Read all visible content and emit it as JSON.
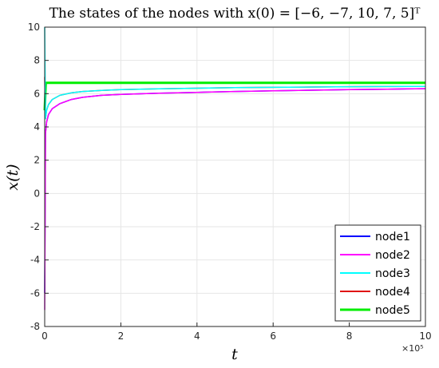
{
  "chart_data": {
    "type": "line",
    "title": "The states of the nodes with x(0) = [−6, −7, 10, 7, 5]ᵀ",
    "xlabel": "t",
    "ylabel": "x(t)",
    "x_exponent": "×10⁵",
    "xlim": [
      0,
      1000000
    ],
    "ylim": [
      -8,
      10
    ],
    "x_ticks": [
      0,
      200000,
      400000,
      600000,
      800000,
      1000000
    ],
    "x_tick_labels": [
      "0",
      "2",
      "4",
      "6",
      "8",
      "10"
    ],
    "y_ticks": [
      -8,
      -6,
      -4,
      -2,
      0,
      2,
      4,
      6,
      8,
      10
    ],
    "y_tick_labels": [
      "-8",
      "-6",
      "-4",
      "-2",
      "0",
      "2",
      "4",
      "6",
      "8",
      "10"
    ],
    "grid": true,
    "legend_position": "bottom-right",
    "series": [
      {
        "name": "node1",
        "color": "#0000ff",
        "x": [
          0,
          2000,
          5000,
          10000,
          20000,
          40000,
          70000,
          100000,
          150000,
          200000,
          300000,
          400000,
          500000,
          600000,
          700000,
          800000,
          900000,
          1000000
        ],
        "y": [
          -6,
          3.6,
          4.3,
          4.75,
          5.1,
          5.4,
          5.65,
          5.78,
          5.9,
          5.96,
          6.03,
          6.08,
          6.13,
          6.17,
          6.21,
          6.24,
          6.27,
          6.3
        ]
      },
      {
        "name": "node2",
        "color": "#ff00ff",
        "x": [
          0,
          2000,
          5000,
          10000,
          20000,
          40000,
          70000,
          100000,
          150000,
          200000,
          300000,
          400000,
          500000,
          600000,
          700000,
          800000,
          900000,
          1000000
        ],
        "y": [
          -7,
          3.6,
          4.3,
          4.75,
          5.1,
          5.4,
          5.65,
          5.78,
          5.9,
          5.96,
          6.03,
          6.08,
          6.13,
          6.17,
          6.21,
          6.24,
          6.27,
          6.3
        ]
      },
      {
        "name": "node3",
        "color": "#00ffff",
        "x": [
          0,
          2000,
          5000,
          10000,
          20000,
          40000,
          70000,
          100000,
          150000,
          200000,
          300000,
          400000,
          500000,
          600000,
          700000,
          800000,
          900000,
          1000000
        ],
        "y": [
          10,
          4.5,
          5.0,
          5.35,
          5.65,
          5.9,
          6.05,
          6.13,
          6.2,
          6.24,
          6.29,
          6.33,
          6.36,
          6.38,
          6.4,
          6.42,
          6.43,
          6.44
        ]
      },
      {
        "name": "node4",
        "color": "#e01010",
        "x": [
          0,
          2000,
          5000,
          10000,
          20000,
          40000,
          70000,
          100000,
          150000,
          200000,
          300000,
          400000,
          500000,
          600000,
          700000,
          800000,
          900000,
          1000000
        ],
        "y": [
          7,
          4.5,
          5.0,
          5.35,
          5.65,
          5.9,
          6.05,
          6.13,
          6.2,
          6.24,
          6.29,
          6.33,
          6.36,
          6.38,
          6.4,
          6.42,
          6.43,
          6.44
        ]
      },
      {
        "name": "node5",
        "color": "#00ee00",
        "x": [
          0,
          3000,
          6000,
          1000000
        ],
        "y": [
          5,
          6.65,
          6.65,
          6.65
        ]
      }
    ]
  }
}
